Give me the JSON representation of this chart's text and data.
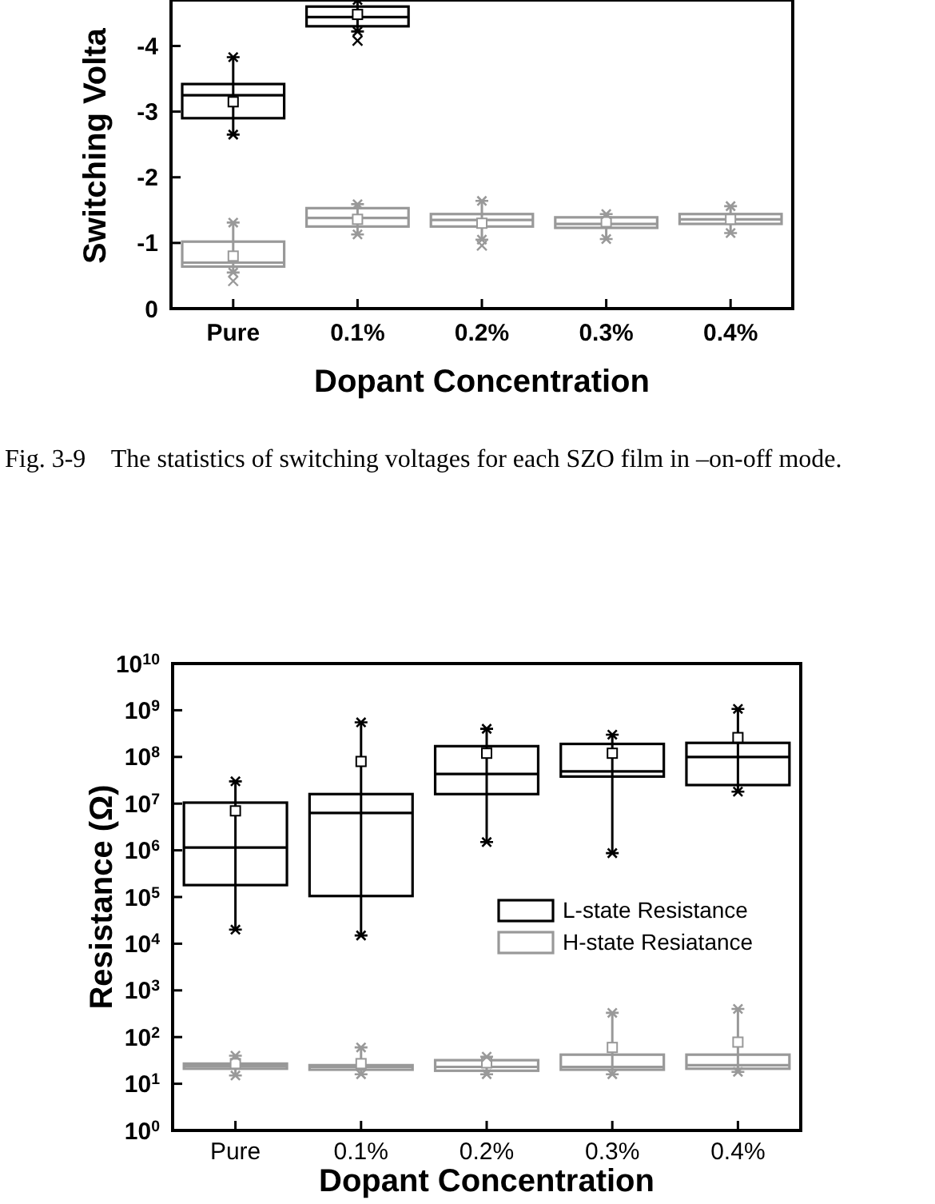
{
  "chart_data": [
    {
      "type": "box",
      "ylabel": "Switching Volta",
      "xlabel": "Dopant Concentration",
      "categories": [
        "Pure",
        "0.1%",
        "0.2%",
        "0.3%",
        "0.4%"
      ],
      "ylim": [
        0,
        -4.7
      ],
      "marker": "star",
      "yticks": [
        0,
        -1,
        -2,
        -3,
        -4
      ],
      "legend": false,
      "annotations": [
        "Fig. 3-9    The statistics of switching voltages for each SZO film in –on-off mode."
      ],
      "series": [
        {
          "color": "#000000",
          "boxes": [
            {
              "low": -3.83,
              "q1": -3.42,
              "median": -3.25,
              "q3": -2.9,
              "high": -2.65,
              "mean": -3.15
            },
            {
              "low": -4.7,
              "q1": -4.6,
              "median": -4.44,
              "q3": -4.3,
              "high": -4.22,
              "mean": -4.48,
              "outliers": [
                -4.08
              ]
            },
            null,
            null,
            null
          ]
        },
        {
          "color": "#999999",
          "boxes": [
            {
              "low": -1.31,
              "q1": -1.02,
              "median": -0.7,
              "q3": -0.64,
              "high": -0.55,
              "mean": -0.8,
              "outliers": [
                -0.42
              ]
            },
            {
              "low": -1.59,
              "q1": -1.53,
              "median": -1.38,
              "q3": -1.25,
              "high": -1.13,
              "mean": -1.36
            },
            {
              "low": -1.64,
              "q1": -1.44,
              "median": -1.35,
              "q3": -1.25,
              "high": -1.05,
              "mean": -1.3,
              "outliers": [
                -0.96
              ]
            },
            {
              "low": -1.44,
              "q1": -1.39,
              "median": -1.29,
              "q3": -1.23,
              "high": -1.06,
              "mean": -1.32
            },
            {
              "low": -1.56,
              "q1": -1.44,
              "median": -1.36,
              "q3": -1.29,
              "high": -1.15,
              "mean": -1.36
            }
          ]
        }
      ]
    },
    {
      "type": "box",
      "ylabel": "Resistance (Ω)",
      "xlabel": "Dopant Concentration",
      "categories": [
        "Pure",
        "0.1%",
        "0.2%",
        "0.3%",
        "0.4%"
      ],
      "log": true,
      "marker": "star",
      "ylim": [
        1,
        10000000000
      ],
      "legend": "right",
      "yticks": [
        {
          "value": 1,
          "label": "10$^{0}$"
        },
        {
          "value": 10,
          "label": "10$^{1}$"
        },
        {
          "value": 100,
          "label": "10$^{2}$"
        },
        {
          "value": 1000,
          "label": "10$^{3}$"
        },
        {
          "value": 10000,
          "label": "10$^{4}$"
        },
        {
          "value": 100000,
          "label": "10$^{5}$"
        },
        {
          "value": 1000000,
          "label": "10$^{6}$"
        },
        {
          "value": 10000000,
          "label": "10$^{7}$"
        },
        {
          "value": 100000000,
          "label": "10$^{8}$"
        },
        {
          "value": 1000000000,
          "label": "10$^{9}$"
        },
        {
          "value": 10000000000,
          "label": "10$^{10}$"
        }
      ],
      "series": [
        {
          "name": "L-state Resistance",
          "color": "#000000",
          "boxes": [
            {
              "low": 20000,
              "q1": 180000,
              "median": 1150000,
              "q3": 10500000,
              "high": 30000000,
              "mean": 7000000
            },
            {
              "low": 15000,
              "q1": 105000,
              "median": 6300000,
              "q3": 16000000,
              "high": 550000000,
              "mean": 80000000
            },
            {
              "low": 1500000,
              "q1": 16000000,
              "median": 43000000,
              "q3": 170000000,
              "high": 400000000,
              "mean": 120000000
            },
            {
              "low": 870000,
              "q1": 38000000,
              "median": 49000000,
              "q3": 190000000,
              "high": 300000000,
              "mean": 120000000
            },
            {
              "low": 18000000,
              "q1": 25000000,
              "median": 100000000,
              "q3": 200000000,
              "high": 1070000000,
              "mean": 260000000
            }
          ]
        },
        {
          "name": "H-state Resiatance",
          "color": "#999999",
          "boxes": [
            {
              "low": 15,
              "q1": 21,
              "median": 24,
              "q3": 27,
              "high": 40,
              "mean": 27
            },
            {
              "low": 16,
              "q1": 20,
              "median": 23,
              "q3": 25,
              "high": 60,
              "mean": 27
            },
            {
              "low": 16,
              "q1": 19,
              "median": 23,
              "q3": 32,
              "high": 38,
              "mean": 28
            },
            {
              "low": 16,
              "q1": 20,
              "median": 23,
              "q3": 42,
              "high": 330,
              "mean": 60
            },
            {
              "low": 18,
              "q1": 21,
              "median": 25,
              "q3": 42,
              "high": 400,
              "mean": 78
            }
          ]
        }
      ]
    }
  ]
}
